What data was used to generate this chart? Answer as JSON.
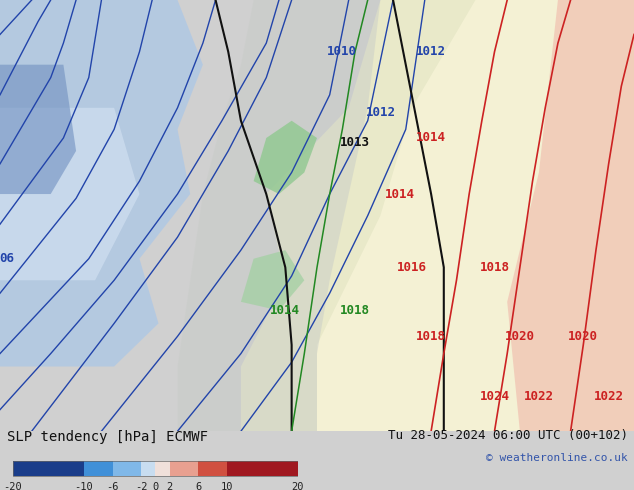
{
  "title_left": "SLP tendency [hPa] ECMWF",
  "title_right": "Tu 28-05-2024 06:00 UTC (00+102)",
  "copyright": "© weatheronline.co.uk",
  "colorbar_levels": [
    -20,
    -10,
    -6,
    -2,
    0,
    2,
    6,
    10,
    20
  ],
  "colorbar_colors": [
    "#1a3d8a",
    "#2060c0",
    "#4090d8",
    "#80b8e8",
    "#b8d4f0",
    "#f0ddd8",
    "#e8a090",
    "#d05040",
    "#a01820"
  ],
  "bg_color": "#e8e8e8",
  "map_bg": "#d8d8d8",
  "blue_fill_color": "#aac4e0",
  "green_fill_color": "#90c890",
  "yellow_fill_color": "#f0f0c0",
  "red_fill_color": "#f0c0b0",
  "isobar_blue_color": "#2244aa",
  "isobar_red_color": "#cc2222",
  "isobar_black_color": "#111111",
  "isobar_green_color": "#228822",
  "label_fontsize": 9,
  "title_fontsize": 10,
  "copyright_fontsize": 8
}
